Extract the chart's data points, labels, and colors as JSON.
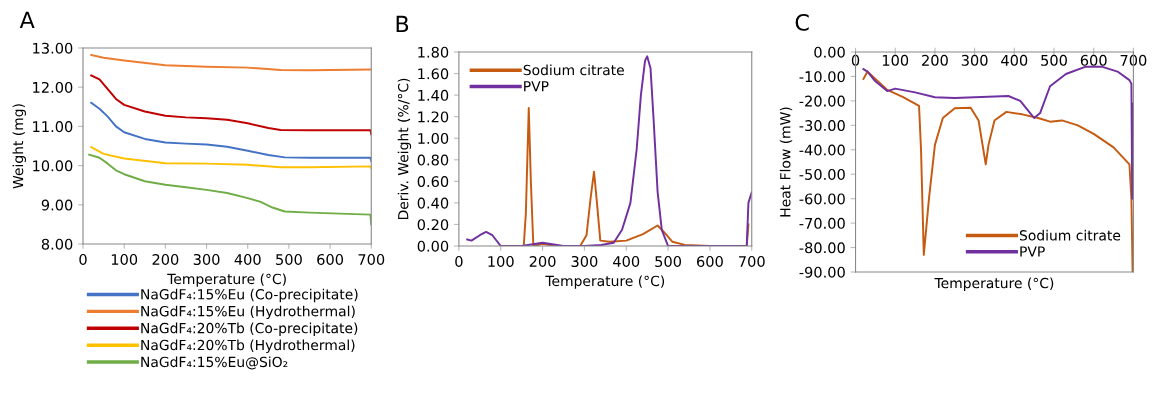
{
  "chart_data": [
    {
      "type": "line",
      "title": "A",
      "xlabel": "Temperature (°C)",
      "ylabel": "Weight (mg)",
      "xlim": [
        0,
        700
      ],
      "ylim": [
        8,
        13
      ],
      "xticks": [
        0,
        100,
        200,
        300,
        400,
        500,
        600,
        700
      ],
      "yticks": [
        {
          "value": 8,
          "label": "8.00"
        },
        {
          "value": 9,
          "label": "9.00"
        },
        {
          "value": 10,
          "label": "10.00"
        },
        {
          "value": 11,
          "label": "11.00"
        },
        {
          "value": 12,
          "label": "12.00"
        },
        {
          "value": 13,
          "label": "13.00"
        }
      ],
      "legend": "bottom",
      "series": [
        {
          "name": "NaGdF₄:15%Eu (Co-precipitate)",
          "color": "#4472c4",
          "x": [
            20,
            40,
            60,
            80,
            100,
            150,
            200,
            250,
            300,
            350,
            400,
            450,
            490,
            550,
            698,
            700
          ],
          "values": [
            11.6,
            11.45,
            11.25,
            11.0,
            10.85,
            10.68,
            10.59,
            10.56,
            10.54,
            10.48,
            10.38,
            10.27,
            10.21,
            10.2,
            10.2,
            10.12
          ]
        },
        {
          "name": "NaGdF₄:15%Eu (Hydrothermal)",
          "color": "#ed7d31",
          "x": [
            20,
            50,
            100,
            200,
            300,
            400,
            480,
            550,
            700
          ],
          "values": [
            12.82,
            12.75,
            12.68,
            12.56,
            12.52,
            12.5,
            12.44,
            12.43,
            12.45
          ]
        },
        {
          "name": "NaGdF₄:20%Tb (Co-precipitate)",
          "color": "#c00000",
          "x": [
            20,
            40,
            60,
            80,
            100,
            150,
            200,
            250,
            300,
            350,
            400,
            450,
            480,
            550,
            698,
            700
          ],
          "values": [
            12.3,
            12.2,
            11.95,
            11.7,
            11.55,
            11.38,
            11.27,
            11.23,
            11.21,
            11.17,
            11.08,
            10.96,
            10.91,
            10.9,
            10.9,
            10.8
          ]
        },
        {
          "name": "NaGdF₄:20%Tb (Hydrothermal)",
          "color": "#ffc000",
          "x": [
            20,
            50,
            100,
            200,
            300,
            400,
            480,
            550,
            698,
            700
          ],
          "values": [
            10.47,
            10.3,
            10.18,
            10.06,
            10.05,
            10.02,
            9.96,
            9.96,
            9.98,
            9.93
          ]
        },
        {
          "name": "NaGdF₄:15%Eu@SiO₂",
          "color": "#70ad47",
          "x": [
            15,
            40,
            60,
            80,
            100,
            150,
            200,
            250,
            300,
            350,
            400,
            430,
            460,
            490,
            550,
            698,
            700
          ],
          "values": [
            10.28,
            10.2,
            10.05,
            9.88,
            9.78,
            9.6,
            9.51,
            9.45,
            9.38,
            9.3,
            9.17,
            9.08,
            8.93,
            8.83,
            8.8,
            8.75,
            8.5
          ]
        }
      ]
    },
    {
      "type": "line",
      "title": "B",
      "xlabel": "Temperature (°C)",
      "ylabel": "Deriv. Weight (%/°C)",
      "xlim": [
        0,
        700
      ],
      "ylim": [
        0,
        1.8
      ],
      "xticks": [
        0,
        100,
        200,
        300,
        400,
        500,
        600,
        700
      ],
      "yticks": [
        {
          "value": 0,
          "label": "0.00"
        },
        {
          "value": 0.2,
          "label": "0.20"
        },
        {
          "value": 0.4,
          "label": "0.40"
        },
        {
          "value": 0.6,
          "label": "0.60"
        },
        {
          "value": 0.8,
          "label": "0.80"
        },
        {
          "value": 1.0,
          "label": "1.00"
        },
        {
          "value": 1.2,
          "label": "1.20"
        },
        {
          "value": 1.4,
          "label": "1.40"
        },
        {
          "value": 1.6,
          "label": "1.60"
        },
        {
          "value": 1.8,
          "label": "1.80"
        }
      ],
      "legend": "top left",
      "series": [
        {
          "name": "Sodium citrate",
          "color": "#c55a11",
          "x": [
            155,
            160,
            167,
            172,
            178,
            200,
            230,
            290,
            305,
            315,
            323,
            330,
            338,
            360,
            400,
            440,
            475,
            490,
            510,
            540,
            600,
            688,
            692
          ],
          "values": [
            0,
            0.3,
            1.28,
            0.6,
            0,
            0.02,
            0,
            0,
            0.1,
            0.45,
            0.69,
            0.4,
            0.05,
            0.04,
            0.05,
            0.11,
            0.19,
            0.13,
            0.04,
            0.01,
            0,
            0,
            0.2
          ]
        },
        {
          "name": "PVP",
          "color": "#7030a0",
          "x": [
            20,
            30,
            50,
            65,
            80,
            100,
            150,
            200,
            250,
            300,
            340,
            370,
            390,
            410,
            425,
            435,
            445,
            450,
            458,
            465,
            475,
            485,
            500,
            688,
            692,
            700
          ],
          "values": [
            0.06,
            0.05,
            0.1,
            0.13,
            0.1,
            0,
            0,
            0.03,
            0,
            0,
            0.01,
            0.03,
            0.15,
            0.4,
            0.9,
            1.4,
            1.72,
            1.76,
            1.65,
            1.2,
            0.5,
            0.15,
            0,
            0,
            0.4,
            0.5
          ]
        }
      ]
    },
    {
      "type": "line",
      "title": "C",
      "xlabel": "Temperature (°C)",
      "ylabel": "Heat Flow (mW)",
      "xlim": [
        0,
        700
      ],
      "x2lim": [
        0,
        700
      ],
      "x2ticks": [
        0,
        100,
        200,
        300,
        400,
        500,
        600,
        700
      ],
      "ylim": [
        -90,
        0
      ],
      "yticks": [
        {
          "value": -90,
          "label": "-90.00"
        },
        {
          "value": -80,
          "label": "-80.00"
        },
        {
          "value": -70,
          "label": "-70.00"
        },
        {
          "value": -60,
          "label": "-60.00"
        },
        {
          "value": -50,
          "label": "-50.00"
        },
        {
          "value": -40,
          "label": "-40.00"
        },
        {
          "value": -30,
          "label": "-30.00"
        },
        {
          "value": -20,
          "label": "-20.00"
        },
        {
          "value": -10,
          "label": "-10.00"
        },
        {
          "value": 0,
          "label": "0.00"
        }
      ],
      "legend": "bottom right",
      "series": [
        {
          "name": "Sodium citrate",
          "color": "#c55a11",
          "x": [
            20,
            30,
            50,
            80,
            120,
            160,
            165,
            172,
            185,
            200,
            220,
            250,
            290,
            310,
            322,
            328,
            335,
            350,
            380,
            420,
            460,
            490,
            520,
            560,
            600,
            650,
            690,
            695,
            698
          ],
          "values": [
            -11,
            -8,
            -11,
            -15.5,
            -18.5,
            -22,
            -40,
            -83,
            -60,
            -38,
            -27,
            -23,
            -22.8,
            -28,
            -40,
            -46,
            -38,
            -28,
            -24.5,
            -25.5,
            -27,
            -28.5,
            -28,
            -30,
            -33.5,
            -39,
            -46,
            -60,
            -90
          ]
        },
        {
          "name": "PVP",
          "color": "#7030a0",
          "x": [
            20,
            30,
            50,
            80,
            100,
            150,
            200,
            250,
            300,
            385,
            415,
            440,
            450,
            465,
            490,
            530,
            580,
            620,
            660,
            690,
            695,
            697,
            700,
            700
          ],
          "values": [
            -7,
            -8,
            -12,
            -16,
            -15,
            -16.5,
            -18.5,
            -18.8,
            -18.5,
            -18,
            -20,
            -25,
            -27,
            -25,
            -14,
            -9,
            -6,
            -6,
            -8,
            -11.5,
            -13,
            -60,
            -21,
            -34
          ]
        }
      ]
    }
  ]
}
